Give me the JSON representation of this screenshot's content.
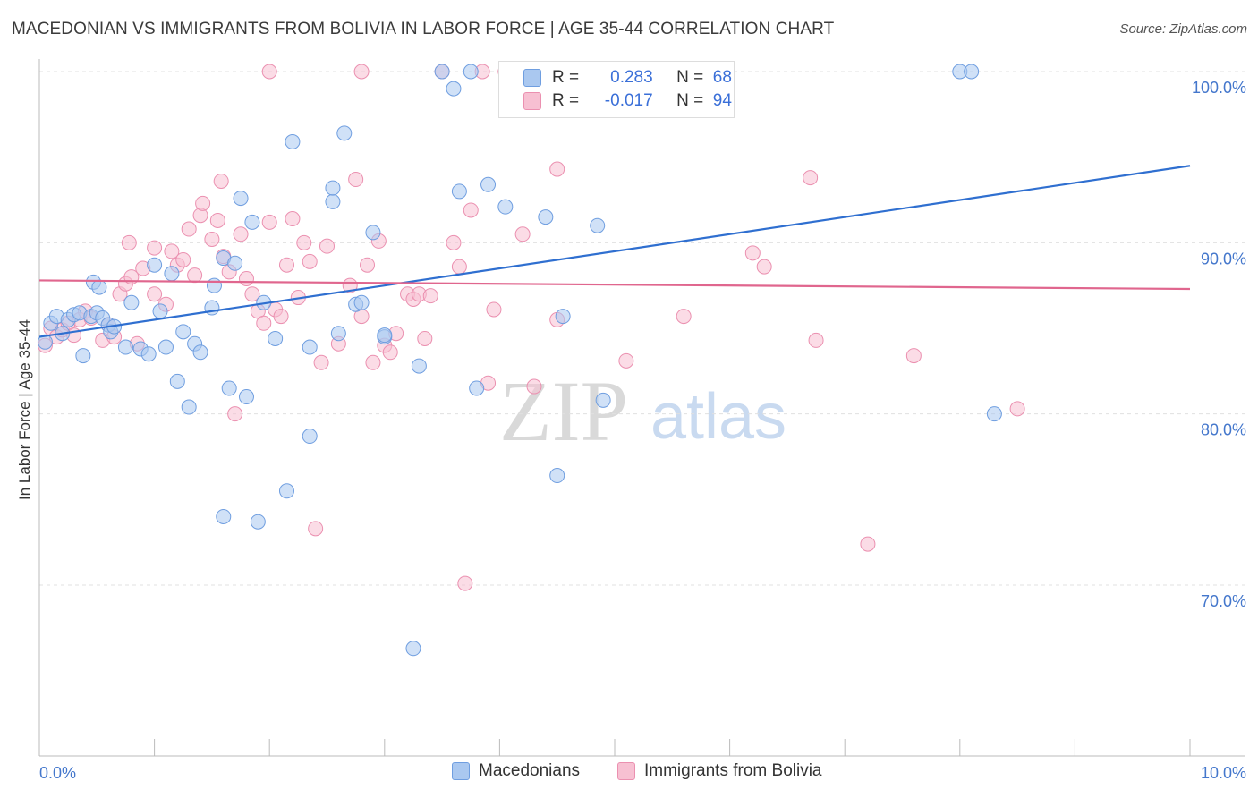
{
  "title": "MACEDONIAN VS IMMIGRANTS FROM BOLIVIA IN LABOR FORCE | AGE 35-44 CORRELATION CHART",
  "source": "Source: ZipAtlas.com",
  "watermark": {
    "zip": "ZIP",
    "atlas": "atlas"
  },
  "stats": [
    {
      "series": "Macedonians",
      "r_label": "R =",
      "r_value": "0.283",
      "n_label": "N =",
      "n_value": "68"
    },
    {
      "series": "Immigrants from Bolivia",
      "r_label": "R =",
      "r_value": "-0.017",
      "n_label": "N =",
      "n_value": "94"
    }
  ],
  "colors": {
    "blue_fill": "#aac8f0",
    "blue_stroke": "#6f9ee0",
    "blue_line": "#2f6fd0",
    "pink_fill": "#f7c0d2",
    "pink_stroke": "#eb90b0",
    "pink_line": "#e0668e",
    "tick_text": "#4477cc",
    "grid": "#e0e0e0"
  },
  "chart_data": {
    "type": "scatter",
    "title": "MACEDONIAN VS IMMIGRANTS FROM BOLIVIA IN LABOR FORCE | AGE 35-44 CORRELATION CHART",
    "xlabel": "",
    "ylabel": "In Labor Force | Age 35-44",
    "xlim": [
      0,
      10
    ],
    "ylim": [
      60,
      100
    ],
    "x_tick_labels": [
      {
        "value": 0,
        "label": "0.0%"
      },
      {
        "value": 10,
        "label": "10.0%"
      }
    ],
    "y_tick_labels": [
      {
        "value": 70,
        "label": "70.0%"
      },
      {
        "value": 80,
        "label": "80.0%"
      },
      {
        "value": 90,
        "label": "90.0%"
      },
      {
        "value": 100,
        "label": "100.0%"
      }
    ],
    "series": [
      {
        "name": "Macedonians",
        "color": "blue",
        "trend": {
          "x": [
            0,
            10
          ],
          "y": [
            84.5,
            94.5
          ]
        },
        "points": [
          [
            0.05,
            84.2
          ],
          [
            0.1,
            85.3
          ],
          [
            0.15,
            85.7
          ],
          [
            0.2,
            84.7
          ],
          [
            0.25,
            85.5
          ],
          [
            0.3,
            85.8
          ],
          [
            0.35,
            85.9
          ],
          [
            0.38,
            83.4
          ],
          [
            0.45,
            85.7
          ],
          [
            0.5,
            85.9
          ],
          [
            0.55,
            85.6
          ],
          [
            0.47,
            87.7
          ],
          [
            0.52,
            87.4
          ],
          [
            0.6,
            85.2
          ],
          [
            0.62,
            84.8
          ],
          [
            0.65,
            85.1
          ],
          [
            0.75,
            83.9
          ],
          [
            0.8,
            86.5
          ],
          [
            0.88,
            83.8
          ],
          [
            0.95,
            83.5
          ],
          [
            1.0,
            88.7
          ],
          [
            1.05,
            86.0
          ],
          [
            1.1,
            83.9
          ],
          [
            1.15,
            88.2
          ],
          [
            1.2,
            81.9
          ],
          [
            1.25,
            84.8
          ],
          [
            1.3,
            80.4
          ],
          [
            1.35,
            84.1
          ],
          [
            1.4,
            83.6
          ],
          [
            1.5,
            86.2
          ],
          [
            1.52,
            87.5
          ],
          [
            1.6,
            89.1
          ],
          [
            1.6,
            74.0
          ],
          [
            1.65,
            81.5
          ],
          [
            1.7,
            88.8
          ],
          [
            1.75,
            92.6
          ],
          [
            1.85,
            91.2
          ],
          [
            1.8,
            81.0
          ],
          [
            1.9,
            73.7
          ],
          [
            1.95,
            86.5
          ],
          [
            2.05,
            84.4
          ],
          [
            2.15,
            75.5
          ],
          [
            2.2,
            95.9
          ],
          [
            2.35,
            83.9
          ],
          [
            2.35,
            78.7
          ],
          [
            2.55,
            92.4
          ],
          [
            2.55,
            93.2
          ],
          [
            2.6,
            84.7
          ],
          [
            2.65,
            96.4
          ],
          [
            2.75,
            86.4
          ],
          [
            2.8,
            86.5
          ],
          [
            2.9,
            90.6
          ],
          [
            3.0,
            84.5
          ],
          [
            3.0,
            84.6
          ],
          [
            3.25,
            66.3
          ],
          [
            3.3,
            82.8
          ],
          [
            3.5,
            100.0
          ],
          [
            3.6,
            99.0
          ],
          [
            3.65,
            93.0
          ],
          [
            3.75,
            100.0
          ],
          [
            3.8,
            81.5
          ],
          [
            3.9,
            93.4
          ],
          [
            4.05,
            92.1
          ],
          [
            4.4,
            91.5
          ],
          [
            4.5,
            76.4
          ],
          [
            4.55,
            85.7
          ],
          [
            4.85,
            91.0
          ],
          [
            4.9,
            80.8
          ],
          [
            8.0,
            100.0
          ],
          [
            8.1,
            100.0
          ],
          [
            8.3,
            80.0
          ]
        ]
      },
      {
        "name": "Immigrants from Bolivia",
        "color": "pink",
        "trend": {
          "x": [
            0,
            10
          ],
          "y": [
            87.8,
            87.3
          ]
        },
        "points": [
          [
            0.05,
            84.0
          ],
          [
            0.1,
            85.0
          ],
          [
            0.15,
            84.5
          ],
          [
            0.2,
            84.9
          ],
          [
            0.25,
            85.3
          ],
          [
            0.3,
            84.6
          ],
          [
            0.35,
            85.5
          ],
          [
            0.4,
            86.0
          ],
          [
            0.45,
            85.6
          ],
          [
            0.55,
            84.3
          ],
          [
            0.6,
            85.2
          ],
          [
            0.65,
            84.5
          ],
          [
            0.7,
            87.0
          ],
          [
            0.75,
            87.6
          ],
          [
            0.78,
            90.0
          ],
          [
            0.8,
            88.0
          ],
          [
            0.85,
            84.1
          ],
          [
            0.9,
            88.5
          ],
          [
            1.0,
            89.7
          ],
          [
            1.0,
            87.0
          ],
          [
            1.1,
            86.4
          ],
          [
            1.15,
            89.5
          ],
          [
            1.2,
            88.7
          ],
          [
            1.25,
            89.0
          ],
          [
            1.3,
            90.8
          ],
          [
            1.35,
            88.1
          ],
          [
            1.4,
            91.6
          ],
          [
            1.42,
            92.3
          ],
          [
            1.5,
            90.2
          ],
          [
            1.55,
            91.3
          ],
          [
            1.58,
            93.6
          ],
          [
            1.6,
            89.2
          ],
          [
            1.65,
            88.3
          ],
          [
            1.7,
            80.0
          ],
          [
            1.75,
            90.5
          ],
          [
            1.8,
            87.9
          ],
          [
            1.85,
            87.0
          ],
          [
            1.9,
            86.0
          ],
          [
            1.95,
            85.3
          ],
          [
            2.0,
            91.2
          ],
          [
            2.05,
            86.1
          ],
          [
            2.1,
            85.7
          ],
          [
            2.15,
            88.7
          ],
          [
            2.2,
            91.4
          ],
          [
            2.25,
            86.8
          ],
          [
            2.3,
            90.0
          ],
          [
            2.35,
            88.9
          ],
          [
            2.4,
            73.3
          ],
          [
            2.45,
            83.0
          ],
          [
            2.5,
            89.8
          ],
          [
            2.6,
            84.1
          ],
          [
            2.7,
            87.5
          ],
          [
            2.75,
            93.7
          ],
          [
            2.8,
            85.7
          ],
          [
            2.85,
            88.7
          ],
          [
            2.9,
            83.0
          ],
          [
            2.95,
            90.1
          ],
          [
            3.0,
            84.0
          ],
          [
            3.05,
            83.6
          ],
          [
            3.1,
            84.7
          ],
          [
            3.2,
            87.0
          ],
          [
            3.25,
            86.7
          ],
          [
            3.3,
            87.0
          ],
          [
            3.35,
            84.4
          ],
          [
            3.4,
            86.9
          ],
          [
            3.5,
            100.0
          ],
          [
            3.6,
            90.0
          ],
          [
            3.65,
            88.6
          ],
          [
            3.7,
            70.1
          ],
          [
            3.75,
            91.9
          ],
          [
            3.85,
            100.0
          ],
          [
            3.9,
            81.8
          ],
          [
            3.95,
            86.1
          ],
          [
            4.05,
            100.0
          ],
          [
            4.2,
            90.5
          ],
          [
            4.4,
            100.0
          ],
          [
            4.5,
            94.3
          ],
          [
            4.6,
            100.0
          ],
          [
            4.3,
            81.6
          ],
          [
            4.5,
            85.5
          ],
          [
            5.05,
            100.0
          ],
          [
            5.1,
            83.1
          ],
          [
            5.6,
            85.7
          ],
          [
            6.2,
            89.4
          ],
          [
            6.75,
            84.3
          ],
          [
            6.3,
            88.6
          ],
          [
            6.7,
            93.8
          ],
          [
            7.2,
            72.4
          ],
          [
            7.6,
            83.4
          ],
          [
            8.5,
            80.3
          ],
          [
            2.0,
            100.0
          ],
          [
            2.8,
            100.0
          ]
        ]
      }
    ]
  },
  "legend": {
    "items": [
      {
        "label": "Macedonians",
        "color": "blue"
      },
      {
        "label": "Immigrants from Bolivia",
        "color": "pink"
      }
    ]
  }
}
